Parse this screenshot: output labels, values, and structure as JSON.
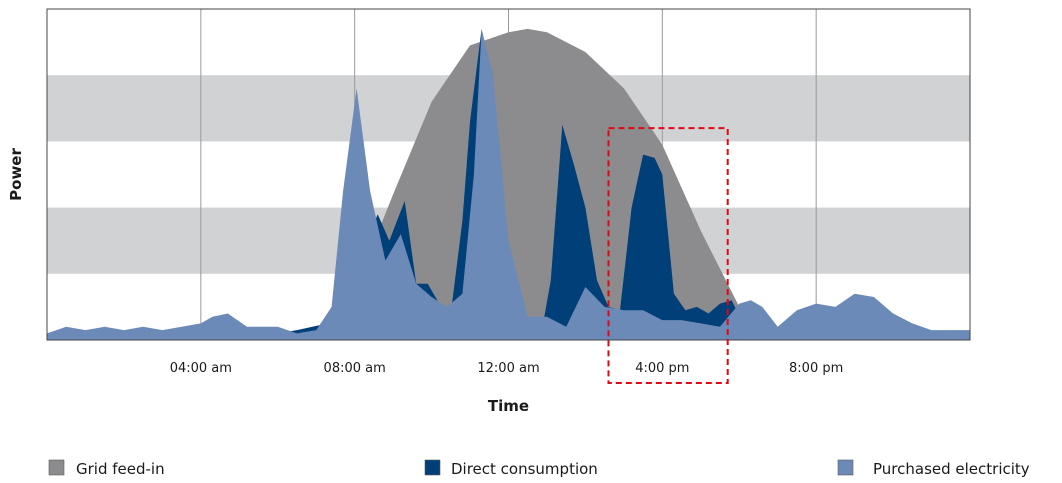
{
  "chart_data": {
    "type": "area",
    "xlabel": "Time",
    "ylabel": "Power",
    "x_range_hours": [
      0,
      24
    ],
    "x_ticks": [
      {
        "hour": 4,
        "label": "04:00 am"
      },
      {
        "hour": 8,
        "label": "08:00 am"
      },
      {
        "hour": 12,
        "label": "12:00 am"
      },
      {
        "hour": 16,
        "label": "4:00 pm"
      },
      {
        "hour": 20,
        "label": "8:00 pm"
      }
    ],
    "ylim": [
      0,
      100
    ],
    "horizontal_bands": [
      [
        20,
        40
      ],
      [
        60,
        80
      ]
    ],
    "vertical_grid": true,
    "highlight": {
      "x_range": [
        14.6,
        17.7
      ],
      "y_range": [
        -13,
        64
      ],
      "style": "red dashed box"
    },
    "legend": [
      {
        "label": "Grid feed-in",
        "color": "#8c8c8e"
      },
      {
        "label": "Direct consumption",
        "color": "#003f78"
      },
      {
        "label": "Purchased electricity",
        "color": "#6c8ab7"
      }
    ],
    "series": [
      {
        "name": "Grid feed-in",
        "color": "#8c8c8e",
        "x": [
          6.8,
          8,
          9,
          10,
          11,
          12,
          12.5,
          13,
          14,
          15,
          16,
          17,
          18,
          18.8
        ],
        "y": [
          0,
          15,
          44,
          72,
          89,
          93,
          94,
          93,
          87,
          76,
          59,
          33,
          10,
          0
        ]
      },
      {
        "name": "Direct consumption",
        "color": "#003f78",
        "x": [
          4.9,
          6.5,
          7.3,
          7.8,
          8.2,
          8.6,
          8.9,
          9.3,
          9.6,
          9.9,
          10.2,
          10.5,
          10.8,
          11.0,
          11.3,
          11.6,
          11.9,
          12.1,
          12.3,
          12.6,
          12.9,
          13.1,
          13.4,
          13.7,
          14.0,
          14.3,
          14.6,
          14.9,
          15.2,
          15.5,
          15.8,
          16.0,
          16.3,
          16.6,
          16.9,
          17.2,
          17.5,
          17.8,
          18.1,
          18.4,
          18.7,
          19.0,
          19.3,
          19.6
        ],
        "y": [
          0,
          3,
          5,
          14,
          27,
          38,
          30,
          42,
          17,
          17,
          11,
          8,
          36,
          66,
          94,
          74,
          33,
          12,
          7,
          5,
          5,
          18,
          65,
          53,
          40,
          18,
          10,
          9,
          40,
          56,
          55,
          50,
          14,
          9,
          10,
          8,
          11,
          12,
          5,
          3,
          2,
          1,
          1,
          0
        ]
      },
      {
        "name": "Purchased electricity",
        "color": "#6c8ab7",
        "x": [
          0,
          0.5,
          1,
          1.5,
          2,
          2.5,
          3,
          3.5,
          4,
          4.3,
          4.7,
          5.2,
          5.6,
          6,
          6.5,
          7.0,
          7.4,
          7.7,
          8.05,
          8.4,
          8.8,
          9.2,
          9.6,
          10.0,
          10.4,
          10.8,
          11.1,
          11.3,
          11.6,
          12.0,
          12.5,
          13.0,
          13.5,
          14.0,
          14.5,
          15.0,
          15.5,
          16.0,
          16.5,
          17.0,
          17.5,
          18.0,
          18.3,
          18.6,
          19.0,
          19.5,
          20.0,
          20.5,
          21.0,
          21.5,
          22.0,
          22.5,
          23.0,
          23.5,
          24.0
        ],
        "y": [
          2,
          4,
          3,
          4,
          3,
          4,
          3,
          4,
          5,
          7,
          8,
          4,
          4,
          4,
          2,
          3,
          10,
          45,
          76,
          45,
          24,
          32,
          17,
          13,
          10,
          14,
          50,
          94,
          80,
          30,
          7,
          7,
          4,
          16,
          10,
          9,
          9,
          6,
          6,
          5,
          4,
          11,
          12,
          10,
          4,
          9,
          11,
          10,
          14,
          13,
          8,
          5,
          3,
          3,
          3
        ]
      }
    ]
  }
}
